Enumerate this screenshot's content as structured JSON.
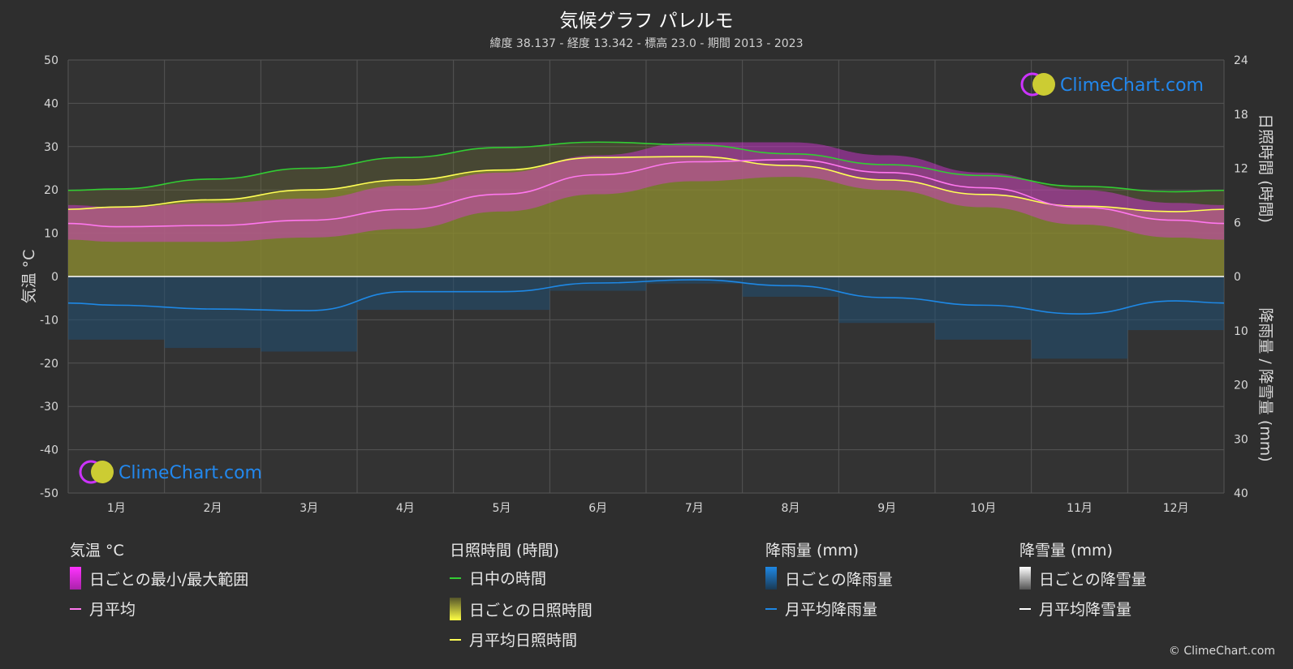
{
  "title": "気候グラフ パレルモ",
  "subtitle": "緯度 38.137 - 経度 13.342 - 標高 23.0 - 期間 2013 - 2023",
  "watermark": "ClimeChart.com",
  "copyright": "© ClimeChart.com",
  "colors": {
    "background": "#2e2e2e",
    "daylight": "#33cc33",
    "sunshine": "#ffff55",
    "sunshine_fill": "#9a9a2e",
    "temp_avg": "#ff77ee",
    "temp_range": "#dd33dd",
    "rain": "#1e88e5",
    "rain_fill": "#1f4f73",
    "snow": "#ffffff"
  },
  "chart_data": {
    "type": "line",
    "categories": [
      "1月",
      "2月",
      "3月",
      "4月",
      "5月",
      "6月",
      "7月",
      "8月",
      "9月",
      "10月",
      "11月",
      "12月"
    ],
    "y_left": {
      "label": "気温 °C",
      "lim": [
        -50,
        50
      ],
      "ticks": [
        50,
        40,
        30,
        20,
        10,
        0,
        -10,
        -20,
        -30,
        -40,
        -50
      ]
    },
    "y_right_top": {
      "label": "日照時間 (時間)",
      "lim": [
        0,
        24
      ],
      "ticks": [
        24,
        18,
        12,
        6,
        0
      ]
    },
    "y_right_bottom": {
      "label": "降雨量 / 降雪量 (mm)",
      "lim": [
        0,
        40
      ],
      "ticks": [
        10,
        20,
        30,
        40
      ]
    },
    "series": [
      {
        "name": "日中の時間",
        "unit": "hours",
        "values": [
          9.7,
          10.8,
          12.0,
          13.2,
          14.3,
          14.9,
          14.6,
          13.6,
          12.4,
          11.2,
          10.0,
          9.4
        ]
      },
      {
        "name": "月平均日照時間",
        "unit": "hours",
        "values": [
          7.7,
          8.5,
          9.6,
          10.7,
          11.8,
          13.2,
          13.3,
          12.3,
          10.7,
          9.1,
          7.8,
          7.2
        ]
      },
      {
        "name": "月平均",
        "unit": "°C",
        "values": [
          11.5,
          11.8,
          13.0,
          15.5,
          19.0,
          23.5,
          26.5,
          27.0,
          24.0,
          20.5,
          16.0,
          13.0
        ]
      },
      {
        "name": "月平均降雨量",
        "unit": "mm",
        "values": [
          5.3,
          6.0,
          6.3,
          2.8,
          2.8,
          1.2,
          0.6,
          1.7,
          3.9,
          5.3,
          6.9,
          4.5
        ]
      },
      {
        "name": "日ごとの最小/最大範囲",
        "unit": "°C",
        "min": [
          8,
          8,
          9,
          11,
          15,
          19,
          22,
          23,
          20,
          16,
          12,
          9
        ],
        "max": [
          16,
          17,
          18,
          21,
          24,
          28,
          31,
          31,
          28,
          24,
          20,
          17
        ]
      }
    ]
  },
  "legend": {
    "groups": [
      {
        "title": "気温 °C",
        "items": [
          {
            "label": "日ごとの最小/最大範囲",
            "swatch": "range"
          },
          {
            "label": "月平均",
            "swatch": "temp"
          }
        ]
      },
      {
        "title": "日照時間 (時間)",
        "items": [
          {
            "label": "日中の時間",
            "swatch": "daylight"
          },
          {
            "label": "日ごとの日照時間",
            "swatch": "sunbox"
          },
          {
            "label": "月平均日照時間",
            "swatch": "sunline"
          }
        ]
      },
      {
        "title": "降雨量 (mm)",
        "items": [
          {
            "label": "日ごとの降雨量",
            "swatch": "rainbox"
          },
          {
            "label": "月平均降雨量",
            "swatch": "rainline"
          }
        ]
      },
      {
        "title": "降雪量 (mm)",
        "items": [
          {
            "label": "日ごとの降雪量",
            "swatch": "snowbox"
          },
          {
            "label": "月平均降雪量",
            "swatch": "snowline"
          }
        ]
      }
    ]
  }
}
